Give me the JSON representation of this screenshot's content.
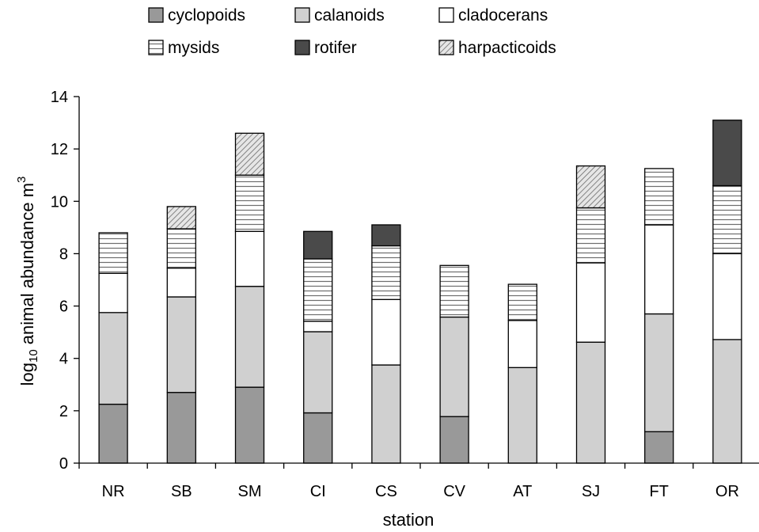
{
  "chart_data": {
    "type": "bar",
    "stacked": true,
    "categories": [
      "NR",
      "SB",
      "SM",
      "CI",
      "CS",
      "CV",
      "AT",
      "SJ",
      "FT",
      "OR"
    ],
    "series": [
      {
        "name": "cyclopoids",
        "key": "cyclopoids",
        "color": "#999999",
        "values": [
          2.25,
          2.7,
          2.9,
          1.92,
          0,
          1.78,
          0,
          0,
          1.2,
          0
        ]
      },
      {
        "name": "calanoids",
        "key": "calanoids",
        "color": "#d0d0d0",
        "values": [
          3.5,
          3.65,
          3.85,
          3.1,
          3.75,
          3.8,
          3.65,
          4.62,
          4.5,
          4.72
        ]
      },
      {
        "name": "cladocerans",
        "key": "cladocerans",
        "color": "#ffffff",
        "values": [
          1.5,
          1.1,
          2.1,
          0.4,
          2.5,
          0,
          1.8,
          3.03,
          3.4,
          3.28
        ]
      },
      {
        "name": "mysids",
        "key": "mysids",
        "color": "#ffffff",
        "values": [
          1.55,
          1.5,
          2.15,
          2.38,
          2.05,
          1.97,
          1.38,
          2.1,
          2.15,
          2.6
        ]
      },
      {
        "name": "rotifer",
        "key": "rotifer",
        "color": "#4a4a4a",
        "values": [
          0,
          0,
          0,
          1.05,
          0.8,
          0,
          0,
          0,
          0,
          2.5
        ]
      },
      {
        "name": "harpacticoids",
        "key": "harpacticoids",
        "color": "#e6e6e6",
        "values": [
          0,
          0.85,
          1.6,
          0,
          0,
          0,
          0,
          1.6,
          0,
          0
        ]
      }
    ],
    "xlabel": "station",
    "ylabel": {
      "prefix": "log",
      "subscript": "10",
      "main": " animal abundance m",
      "superscript": "3"
    },
    "ylim": [
      0,
      14
    ],
    "yticks": [
      "0",
      "2",
      "4",
      "6",
      "8",
      "10",
      "12",
      "14"
    ],
    "grid": false,
    "legend_position": "top"
  }
}
